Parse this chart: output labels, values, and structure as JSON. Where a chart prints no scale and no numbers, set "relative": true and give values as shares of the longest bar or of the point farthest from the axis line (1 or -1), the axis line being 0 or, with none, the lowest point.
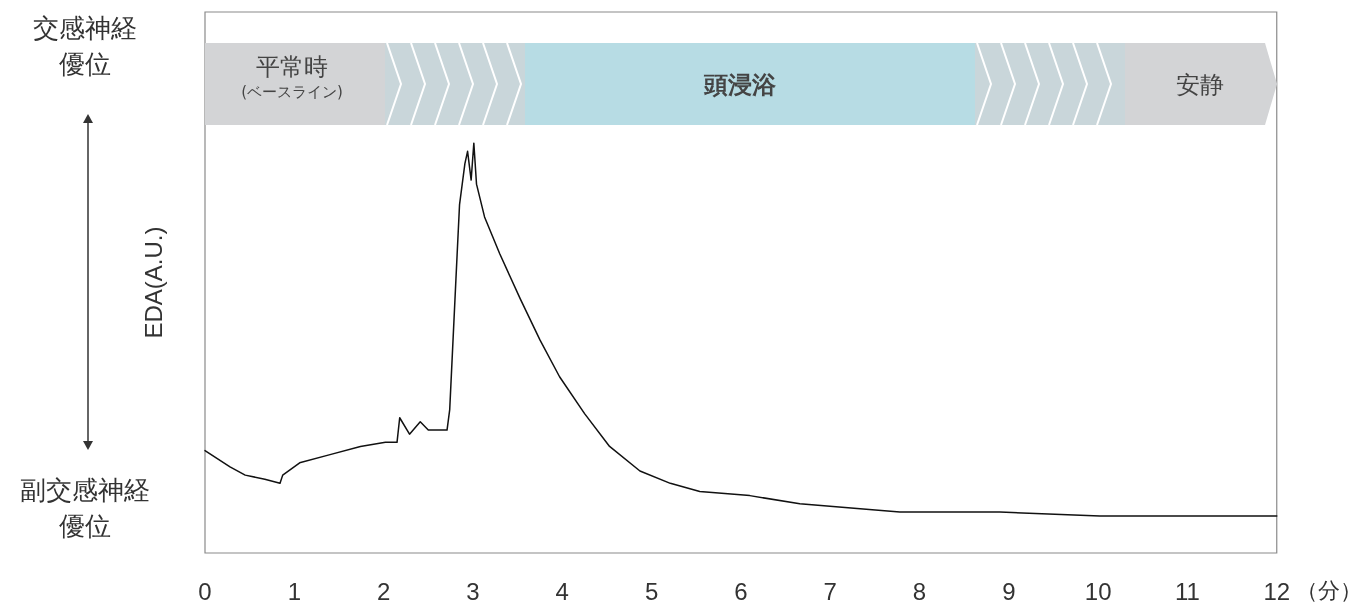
{
  "chart_data": {
    "type": "line",
    "relative": true,
    "ylabel": "EDA(A.U.)",
    "xlabel": "（分）",
    "xlim": [
      0,
      12
    ],
    "xticks": [
      0,
      1,
      2,
      3,
      4,
      5,
      6,
      7,
      8,
      9,
      10,
      11,
      12
    ],
    "grid": false,
    "marker": "none",
    "line_style": "solid",
    "x": [
      0,
      0.28,
      0.45,
      0.67,
      0.84,
      0.87,
      1.06,
      1.4,
      1.74,
      2.02,
      2.15,
      2.18,
      2.29,
      2.41,
      2.5,
      2.71,
      2.74,
      2.81,
      2.85,
      2.91,
      2.94,
      2.98,
      3.01,
      3.04,
      3.13,
      3.3,
      3.53,
      3.75,
      3.97,
      4.25,
      4.53,
      4.87,
      5.21,
      5.54,
      6.1,
      6.66,
      7.78,
      8.9,
      10.02,
      11.14,
      12
    ],
    "series": [
      {
        "color": "#111111",
        "values": [
          0.25,
          0.21,
          0.19,
          0.18,
          0.17,
          0.19,
          0.22,
          0.24,
          0.26,
          0.27,
          0.27,
          0.33,
          0.29,
          0.32,
          0.3,
          0.3,
          0.35,
          0.67,
          0.85,
          0.95,
          0.98,
          0.91,
          1.0,
          0.9,
          0.82,
          0.73,
          0.62,
          0.52,
          0.43,
          0.34,
          0.26,
          0.2,
          0.17,
          0.15,
          0.14,
          0.12,
          0.1,
          0.1,
          0.09,
          0.09,
          0.09
        ]
      }
    ],
    "annotations": [
      "交感神経優位",
      "副交感神経優位",
      "平常時\n(ベースライン)",
      "頭浸浴",
      "安静"
    ]
  }
}
